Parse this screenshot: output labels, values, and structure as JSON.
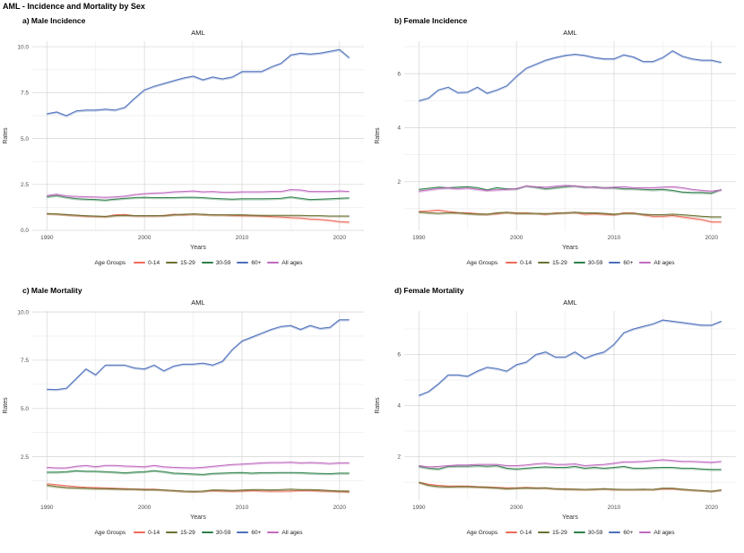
{
  "page_title": "AML - Incidence and Mortality by Sex",
  "legend": {
    "title": "Age Groups",
    "items": [
      {
        "label": "0-14",
        "color": "#ed6a5a"
      },
      {
        "label": "15-29",
        "color": "#6b7030"
      },
      {
        "label": "30-59",
        "color": "#2e8049"
      },
      {
        "label": "60+",
        "color": "#4c6fbb"
      },
      {
        "label": "All ages",
        "color": "#bf6abf"
      }
    ]
  },
  "style": {
    "grid_major": "#d9d9d9",
    "grid_minor": "#ededed",
    "tick_text": "#4d4d4d",
    "axis_label_text": "#333333",
    "subtitle_text": "#1a1a1a"
  },
  "chart_data": [
    {
      "id": "a",
      "label": "a) Male Incidence",
      "type": "line",
      "title": "AML",
      "xlabel": "Years",
      "ylabel": "Rates",
      "x_start": 1990,
      "x_end": 2021,
      "xticks": [
        1990,
        2000,
        2010,
        2020
      ],
      "xticks_minor": [
        1995,
        2005,
        2015
      ],
      "ylim": [
        0,
        10.3
      ],
      "yticks": [
        0,
        2.5,
        5,
        7.5,
        10
      ],
      "ytick_labels": [
        "0.0",
        "2.5",
        "5.0",
        "7.5",
        "10.0"
      ],
      "yticks_minor": [
        1.25,
        3.75,
        6.25,
        8.75
      ],
      "series": [
        {
          "name": "0-14",
          "values": [
            0.92,
            0.9,
            0.85,
            0.82,
            0.78,
            0.77,
            0.75,
            0.85,
            0.87,
            0.8,
            0.8,
            0.8,
            0.82,
            0.88,
            0.85,
            0.9,
            0.87,
            0.85,
            0.85,
            0.82,
            0.8,
            0.8,
            0.78,
            0.75,
            0.73,
            0.7,
            0.68,
            0.62,
            0.6,
            0.55,
            0.48,
            0.45
          ]
        },
        {
          "name": "15-29",
          "values": [
            0.92,
            0.9,
            0.87,
            0.83,
            0.8,
            0.78,
            0.76,
            0.8,
            0.82,
            0.8,
            0.8,
            0.8,
            0.8,
            0.85,
            0.88,
            0.9,
            0.88,
            0.85,
            0.85,
            0.85,
            0.85,
            0.83,
            0.82,
            0.82,
            0.82,
            0.82,
            0.82,
            0.8,
            0.8,
            0.78,
            0.78,
            0.78
          ]
        },
        {
          "name": "30-59",
          "values": [
            1.83,
            1.9,
            1.8,
            1.73,
            1.7,
            1.68,
            1.65,
            1.7,
            1.75,
            1.78,
            1.8,
            1.78,
            1.78,
            1.78,
            1.8,
            1.8,
            1.78,
            1.75,
            1.72,
            1.7,
            1.72,
            1.72,
            1.72,
            1.73,
            1.75,
            1.82,
            1.75,
            1.68,
            1.7,
            1.72,
            1.75,
            1.77
          ]
        },
        {
          "name": "60+",
          "values": [
            6.35,
            6.45,
            6.25,
            6.5,
            6.55,
            6.55,
            6.6,
            6.55,
            6.7,
            7.2,
            7.65,
            7.85,
            8.0,
            8.15,
            8.3,
            8.4,
            8.2,
            8.35,
            8.25,
            8.35,
            8.65,
            8.65,
            8.65,
            8.9,
            9.1,
            9.55,
            9.65,
            9.6,
            9.65,
            9.75,
            9.85,
            9.4
          ]
        },
        {
          "name": "All ages",
          "values": [
            1.9,
            1.97,
            1.88,
            1.85,
            1.83,
            1.82,
            1.8,
            1.82,
            1.87,
            1.95,
            2.0,
            2.03,
            2.05,
            2.1,
            2.12,
            2.15,
            2.1,
            2.12,
            2.08,
            2.08,
            2.1,
            2.1,
            2.1,
            2.12,
            2.12,
            2.22,
            2.2,
            2.12,
            2.12,
            2.12,
            2.15,
            2.12
          ]
        }
      ]
    },
    {
      "id": "b",
      "label": "b) Female Incidence",
      "type": "line",
      "title": "AML",
      "xlabel": "Years",
      "ylabel": "Rates",
      "x_start": 1990,
      "x_end": 2021,
      "xticks": [
        1990,
        2000,
        2010,
        2020
      ],
      "xticks_minor": [
        1995,
        2005,
        2015
      ],
      "ylim": [
        0.2,
        7.2
      ],
      "yticks": [
        2,
        4,
        6
      ],
      "ytick_labels": [
        "2",
        "4",
        "6"
      ],
      "yticks_minor": [
        1,
        3,
        5,
        7
      ],
      "series": [
        {
          "name": "0-14",
          "values": [
            0.9,
            0.92,
            0.95,
            0.9,
            0.86,
            0.85,
            0.82,
            0.8,
            0.82,
            0.87,
            0.85,
            0.85,
            0.83,
            0.8,
            0.85,
            0.85,
            0.87,
            0.8,
            0.82,
            0.8,
            0.78,
            0.85,
            0.85,
            0.78,
            0.72,
            0.72,
            0.75,
            0.7,
            0.65,
            0.6,
            0.52,
            0.52
          ]
        },
        {
          "name": "15-29",
          "values": [
            0.88,
            0.85,
            0.83,
            0.85,
            0.85,
            0.82,
            0.8,
            0.8,
            0.85,
            0.87,
            0.83,
            0.83,
            0.83,
            0.82,
            0.83,
            0.85,
            0.87,
            0.85,
            0.85,
            0.83,
            0.8,
            0.83,
            0.83,
            0.8,
            0.78,
            0.78,
            0.8,
            0.78,
            0.75,
            0.72,
            0.7,
            0.7
          ]
        },
        {
          "name": "30-59",
          "values": [
            1.72,
            1.76,
            1.8,
            1.78,
            1.8,
            1.82,
            1.78,
            1.7,
            1.78,
            1.74,
            1.74,
            1.85,
            1.8,
            1.74,
            1.78,
            1.82,
            1.85,
            1.8,
            1.82,
            1.78,
            1.78,
            1.74,
            1.74,
            1.72,
            1.7,
            1.72,
            1.68,
            1.62,
            1.6,
            1.6,
            1.58,
            1.72
          ]
        },
        {
          "name": "60+",
          "values": [
            5.0,
            5.1,
            5.4,
            5.5,
            5.3,
            5.32,
            5.5,
            5.28,
            5.4,
            5.55,
            5.9,
            6.2,
            6.35,
            6.5,
            6.6,
            6.68,
            6.72,
            6.68,
            6.6,
            6.55,
            6.55,
            6.7,
            6.62,
            6.45,
            6.45,
            6.6,
            6.85,
            6.65,
            6.55,
            6.5,
            6.5,
            6.42
          ]
        },
        {
          "name": "All ages",
          "values": [
            1.65,
            1.7,
            1.75,
            1.78,
            1.74,
            1.77,
            1.72,
            1.68,
            1.7,
            1.72,
            1.75,
            1.85,
            1.82,
            1.8,
            1.84,
            1.87,
            1.85,
            1.82,
            1.8,
            1.78,
            1.8,
            1.82,
            1.78,
            1.78,
            1.78,
            1.8,
            1.82,
            1.78,
            1.72,
            1.68,
            1.65,
            1.7
          ]
        }
      ]
    },
    {
      "id": "c",
      "label": "c) Male Mortality",
      "type": "line",
      "title": "AML",
      "xlabel": "Years",
      "ylabel": "Rates",
      "x_start": 1990,
      "x_end": 2021,
      "xticks": [
        1990,
        2000,
        2010,
        2020
      ],
      "xticks_minor": [
        1995,
        2005,
        2015
      ],
      "ylim": [
        0.25,
        10.05
      ],
      "yticks": [
        2.5,
        5,
        7.5,
        10
      ],
      "ytick_labels": [
        "2.5",
        "5.0",
        "7.5",
        "10.0"
      ],
      "yticks_minor": [
        1.25,
        3.75,
        6.25,
        8.75
      ],
      "series": [
        {
          "name": "0-14",
          "values": [
            1.1,
            1.05,
            1.0,
            0.95,
            0.92,
            0.9,
            0.88,
            0.87,
            0.85,
            0.83,
            0.82,
            0.82,
            0.78,
            0.75,
            0.72,
            0.7,
            0.72,
            0.75,
            0.73,
            0.72,
            0.73,
            0.75,
            0.73,
            0.72,
            0.72,
            0.73,
            0.75,
            0.75,
            0.73,
            0.72,
            0.7,
            0.68
          ]
        },
        {
          "name": "15-29",
          "values": [
            1.02,
            0.95,
            0.9,
            0.88,
            0.87,
            0.85,
            0.85,
            0.83,
            0.82,
            0.82,
            0.8,
            0.8,
            0.78,
            0.75,
            0.72,
            0.7,
            0.72,
            0.78,
            0.77,
            0.75,
            0.77,
            0.8,
            0.8,
            0.78,
            0.8,
            0.82,
            0.8,
            0.8,
            0.78,
            0.75,
            0.73,
            0.72
          ]
        },
        {
          "name": "30-59",
          "values": [
            1.7,
            1.7,
            1.72,
            1.78,
            1.75,
            1.75,
            1.72,
            1.7,
            1.66,
            1.7,
            1.72,
            1.78,
            1.72,
            1.65,
            1.63,
            1.6,
            1.58,
            1.63,
            1.65,
            1.67,
            1.68,
            1.65,
            1.67,
            1.67,
            1.68,
            1.68,
            1.67,
            1.65,
            1.63,
            1.62,
            1.65,
            1.65
          ]
        },
        {
          "name": "60+",
          "values": [
            6.0,
            5.98,
            6.05,
            6.55,
            7.05,
            6.75,
            7.25,
            7.25,
            7.25,
            7.1,
            7.05,
            7.25,
            6.95,
            7.2,
            7.3,
            7.3,
            7.35,
            7.25,
            7.45,
            8.05,
            8.5,
            8.7,
            8.9,
            9.1,
            9.25,
            9.3,
            9.1,
            9.3,
            9.15,
            9.2,
            9.6,
            9.6
          ]
        },
        {
          "name": "All ages",
          "values": [
            1.95,
            1.92,
            1.92,
            2.0,
            2.05,
            1.98,
            2.05,
            2.05,
            2.02,
            2.0,
            1.98,
            2.05,
            1.98,
            1.95,
            1.93,
            1.92,
            1.95,
            2.0,
            2.05,
            2.1,
            2.12,
            2.15,
            2.18,
            2.2,
            2.2,
            2.22,
            2.18,
            2.2,
            2.18,
            2.15,
            2.18,
            2.18
          ]
        }
      ]
    },
    {
      "id": "d",
      "label": "d) Female Mortality",
      "type": "line",
      "title": "AML",
      "xlabel": "Years",
      "ylabel": "Rates",
      "x_start": 1990,
      "x_end": 2021,
      "xticks": [
        1990,
        2000,
        2010,
        2020
      ],
      "xticks_minor": [
        1995,
        2005,
        2015
      ],
      "ylim": [
        0.3,
        7.7
      ],
      "yticks": [
        2,
        4,
        6
      ],
      "ytick_labels": [
        "2",
        "4",
        "6"
      ],
      "yticks_minor": [
        1,
        3,
        5,
        7
      ],
      "series": [
        {
          "name": "0-14",
          "values": [
            1.0,
            0.92,
            0.88,
            0.85,
            0.85,
            0.85,
            0.83,
            0.82,
            0.8,
            0.78,
            0.78,
            0.8,
            0.78,
            0.78,
            0.75,
            0.75,
            0.73,
            0.72,
            0.73,
            0.75,
            0.72,
            0.72,
            0.72,
            0.72,
            0.72,
            0.75,
            0.75,
            0.72,
            0.7,
            0.68,
            0.65,
            0.7
          ]
        },
        {
          "name": "15-29",
          "values": [
            1.0,
            0.88,
            0.83,
            0.82,
            0.83,
            0.83,
            0.82,
            0.8,
            0.78,
            0.75,
            0.77,
            0.78,
            0.77,
            0.78,
            0.75,
            0.73,
            0.73,
            0.72,
            0.73,
            0.75,
            0.73,
            0.72,
            0.72,
            0.73,
            0.72,
            0.77,
            0.77,
            0.73,
            0.7,
            0.68,
            0.65,
            0.7
          ]
        },
        {
          "name": "30-59",
          "values": [
            1.62,
            1.55,
            1.52,
            1.62,
            1.63,
            1.63,
            1.65,
            1.63,
            1.65,
            1.55,
            1.52,
            1.55,
            1.58,
            1.6,
            1.58,
            1.58,
            1.62,
            1.55,
            1.58,
            1.55,
            1.58,
            1.62,
            1.55,
            1.55,
            1.57,
            1.58,
            1.58,
            1.55,
            1.55,
            1.52,
            1.5,
            1.5
          ]
        },
        {
          "name": "60+",
          "values": [
            4.4,
            4.55,
            4.85,
            5.2,
            5.2,
            5.15,
            5.35,
            5.5,
            5.45,
            5.35,
            5.6,
            5.7,
            6.0,
            6.1,
            5.9,
            5.9,
            6.1,
            5.85,
            6.0,
            6.1,
            6.4,
            6.85,
            7.0,
            7.1,
            7.2,
            7.35,
            7.3,
            7.25,
            7.2,
            7.15,
            7.15,
            7.3
          ]
        },
        {
          "name": "All ages",
          "values": [
            1.65,
            1.6,
            1.62,
            1.65,
            1.68,
            1.68,
            1.7,
            1.7,
            1.7,
            1.65,
            1.65,
            1.68,
            1.72,
            1.75,
            1.7,
            1.7,
            1.72,
            1.65,
            1.68,
            1.7,
            1.75,
            1.8,
            1.8,
            1.82,
            1.85,
            1.88,
            1.85,
            1.82,
            1.82,
            1.8,
            1.78,
            1.82
          ]
        }
      ]
    }
  ]
}
